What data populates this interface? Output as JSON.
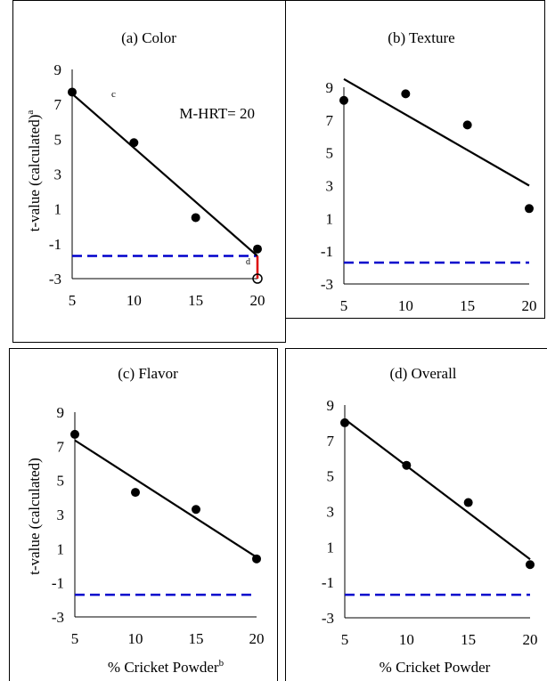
{
  "figure": {
    "ylabel_top": "t-value (calculated)",
    "ylabel_top_superscript": "a",
    "ylabel_bottom": "t-value (calculated)",
    "xlabel_left": "% Cricket Powder",
    "xlabel_left_superscript": "b",
    "xlabel_right": "% Cricket Powder"
  },
  "chart_data": [
    {
      "type": "scatter",
      "title": "(a) Color",
      "x": [
        5,
        10,
        15,
        20
      ],
      "y": [
        7.7,
        4.8,
        0.5,
        -1.3
      ],
      "fit_line": [
        [
          5,
          7.6
        ],
        [
          20,
          -1.7
        ]
      ],
      "threshold": -1.7,
      "xticks": [
        "5",
        "10",
        "15",
        "20"
      ],
      "yticks": [
        "9",
        "7",
        "5",
        "3",
        "1",
        "-1",
        "-3"
      ],
      "xlim": [
        5,
        20
      ],
      "ylim": [
        -3,
        9
      ],
      "annotation": "M-HRT= 20",
      "marker_c": "c",
      "marker_d": "d",
      "drop_line": [
        20,
        -1.7,
        -3
      ],
      "colors": {
        "points": "#000000",
        "threshold": "#0000cc",
        "drop": "#dd0000"
      }
    },
    {
      "type": "scatter",
      "title": "(b) Texture",
      "x": [
        5,
        10,
        15,
        20
      ],
      "y": [
        8.2,
        8.6,
        6.7,
        1.6
      ],
      "fit_line": [
        [
          5,
          9.5
        ],
        [
          20,
          3.0
        ]
      ],
      "threshold": -1.7,
      "xticks": [
        "5",
        "10",
        "15",
        "20"
      ],
      "yticks": [
        "9",
        "7",
        "5",
        "3",
        "1",
        "-1",
        "-3"
      ],
      "xlim": [
        5,
        20
      ],
      "ylim": [
        -3,
        9
      ],
      "colors": {
        "points": "#000000",
        "threshold": "#0000cc"
      }
    },
    {
      "type": "scatter",
      "title": "(c) Flavor",
      "x": [
        5,
        10,
        15,
        20
      ],
      "y": [
        7.7,
        4.3,
        3.3,
        0.4
      ],
      "fit_line": [
        [
          5,
          7.35
        ],
        [
          20,
          0.5
        ]
      ],
      "threshold": -1.7,
      "xticks": [
        "5",
        "10",
        "15",
        "20"
      ],
      "yticks": [
        "9",
        "7",
        "5",
        "3",
        "1",
        "-1",
        "-3"
      ],
      "xlim": [
        5,
        20
      ],
      "ylim": [
        -3,
        9
      ],
      "colors": {
        "points": "#000000",
        "threshold": "#0000cc"
      }
    },
    {
      "type": "scatter",
      "title": "(d) Overall",
      "x": [
        5,
        10,
        15,
        20
      ],
      "y": [
        8.0,
        5.6,
        3.5,
        0.0
      ],
      "fit_line": [
        [
          5,
          8.2
        ],
        [
          20,
          0.3
        ]
      ],
      "threshold": -1.7,
      "xticks": [
        "5",
        "10",
        "15",
        "20"
      ],
      "yticks": [
        "9",
        "7",
        "5",
        "3",
        "1",
        "-1",
        "-3"
      ],
      "xlim": [
        5,
        20
      ],
      "ylim": [
        -3,
        9
      ],
      "colors": {
        "points": "#000000",
        "threshold": "#0000cc"
      }
    }
  ]
}
